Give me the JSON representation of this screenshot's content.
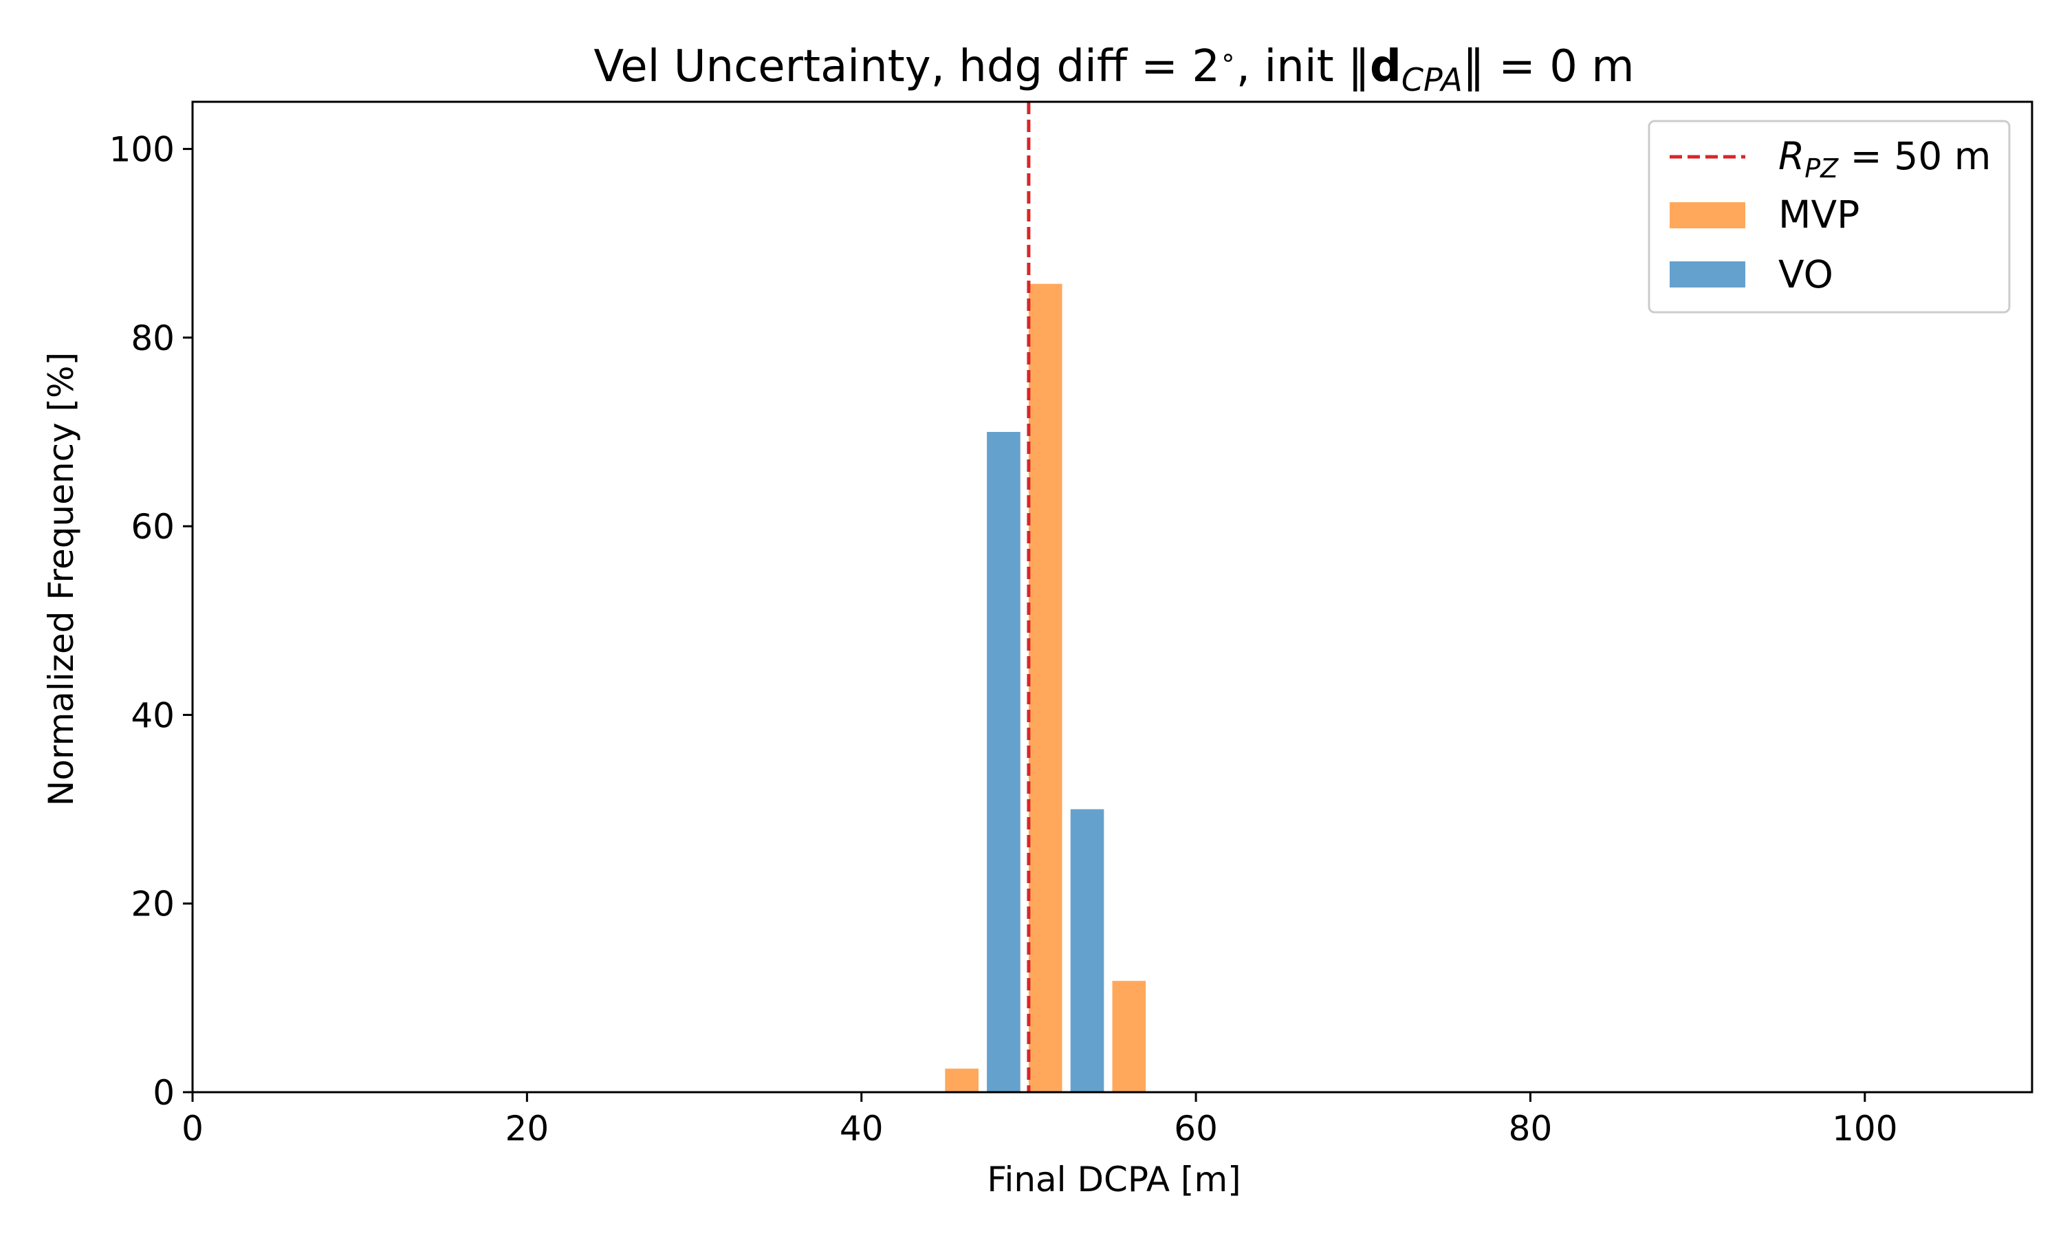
{
  "chart_data": {
    "type": "bar",
    "title": {
      "prefix": "Vel Uncertainty, hdg diff = 2",
      "degree": "∘",
      "mid": ", init ",
      "norm_left": "‖",
      "bold": "d",
      "sub": "CPA",
      "norm_right": "‖",
      "suffix": " = 0 m"
    },
    "xlabel": "Final DCPA [m]",
    "ylabel": "Normalized Frequency [%]",
    "xlim": [
      0,
      110
    ],
    "ylim": [
      0,
      105
    ],
    "xticks": [
      0,
      20,
      40,
      60,
      80,
      100
    ],
    "yticks": [
      0,
      20,
      40,
      60,
      80,
      100
    ],
    "bin_width": 5,
    "bar_fraction": 0.4,
    "bins": [
      45,
      50,
      55
    ],
    "series": [
      {
        "name": "MVP",
        "color": "#ff9f4a",
        "opacity": 0.9,
        "offset": 0,
        "values": [
          2.5,
          85.7,
          11.8
        ]
      },
      {
        "name": "VO",
        "color": "#4a90c4",
        "opacity": 0.85,
        "offset": 2.5,
        "values": [
          70.0,
          30.0,
          0.0
        ]
      }
    ],
    "reference_line": {
      "x": 50,
      "color": "#d62728",
      "label_symbol": "R",
      "label_sub": "PZ",
      "label_suffix": " = 50 m"
    },
    "legend": {
      "position": "top-right",
      "entries": [
        "reference_line",
        "MVP",
        "VO"
      ]
    },
    "grid": false
  }
}
